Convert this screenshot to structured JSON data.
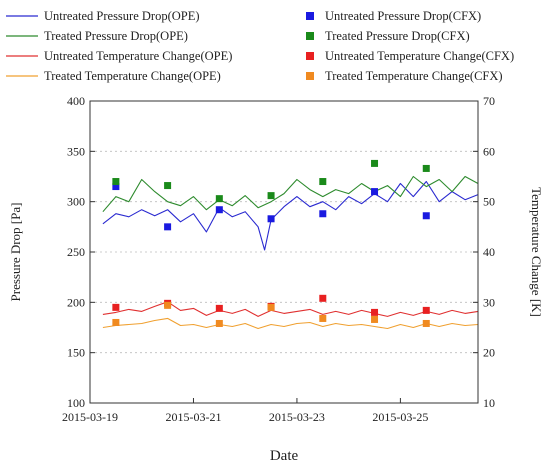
{
  "chart_data": {
    "type": "line",
    "xlabel": "Date",
    "ylabel": "Pressure Drop [Pa]",
    "y2label": "Temperature Change [K]",
    "xlim": [
      "2015-03-19T00:00",
      "2015-03-26T12:00"
    ],
    "xticks": [
      "2015-03-19",
      "2015-03-21",
      "2015-03-23",
      "2015-03-25"
    ],
    "ylim": [
      100,
      400
    ],
    "yticks": [
      100,
      150,
      200,
      250,
      300,
      350,
      400
    ],
    "y2lim": [
      10,
      70
    ],
    "y2ticks": [
      10,
      20,
      30,
      40,
      50,
      60,
      70
    ],
    "grid": "dashed horizontal",
    "legend_placement": "top, two columns",
    "series": [
      {
        "name": "Untreated Pressure Drop(OPE)",
        "kind": "line",
        "axis": "left",
        "color": "#2a2ad0",
        "x": [
          "2015-03-19T06:00",
          "2015-03-19T12:00",
          "2015-03-19T18:00",
          "2015-03-20T00:00",
          "2015-03-20T06:00",
          "2015-03-20T12:00",
          "2015-03-20T18:00",
          "2015-03-21T00:00",
          "2015-03-21T06:00",
          "2015-03-21T12:00",
          "2015-03-21T18:00",
          "2015-03-22T00:00",
          "2015-03-22T06:00",
          "2015-03-22T09:00",
          "2015-03-22T12:00",
          "2015-03-22T18:00",
          "2015-03-23T00:00",
          "2015-03-23T06:00",
          "2015-03-23T12:00",
          "2015-03-23T18:00",
          "2015-03-24T00:00",
          "2015-03-24T06:00",
          "2015-03-24T12:00",
          "2015-03-24T18:00",
          "2015-03-25T00:00",
          "2015-03-25T06:00",
          "2015-03-25T12:00",
          "2015-03-25T18:00",
          "2015-03-26T00:00",
          "2015-03-26T06:00",
          "2015-03-26T12:00"
        ],
        "y": [
          278,
          288,
          285,
          292,
          286,
          292,
          280,
          288,
          270,
          294,
          285,
          290,
          275,
          252,
          282,
          295,
          305,
          295,
          300,
          292,
          305,
          298,
          308,
          300,
          318,
          305,
          320,
          300,
          310,
          302,
          307
        ]
      },
      {
        "name": "Treated Pressure Drop(OPE)",
        "kind": "line",
        "axis": "left",
        "color": "#2e8b2e",
        "x": [
          "2015-03-19T06:00",
          "2015-03-19T12:00",
          "2015-03-19T18:00",
          "2015-03-20T00:00",
          "2015-03-20T06:00",
          "2015-03-20T12:00",
          "2015-03-20T18:00",
          "2015-03-21T00:00",
          "2015-03-21T06:00",
          "2015-03-21T12:00",
          "2015-03-21T18:00",
          "2015-03-22T00:00",
          "2015-03-22T06:00",
          "2015-03-22T12:00",
          "2015-03-22T18:00",
          "2015-03-23T00:00",
          "2015-03-23T06:00",
          "2015-03-23T12:00",
          "2015-03-23T18:00",
          "2015-03-24T00:00",
          "2015-03-24T06:00",
          "2015-03-24T12:00",
          "2015-03-24T18:00",
          "2015-03-25T00:00",
          "2015-03-25T06:00",
          "2015-03-25T12:00",
          "2015-03-25T18:00",
          "2015-03-26T00:00",
          "2015-03-26T06:00",
          "2015-03-26T12:00"
        ],
        "y": [
          290,
          305,
          300,
          322,
          310,
          300,
          296,
          305,
          292,
          302,
          296,
          306,
          294,
          300,
          308,
          322,
          312,
          305,
          312,
          308,
          318,
          310,
          316,
          305,
          325,
          315,
          322,
          310,
          325,
          318
        ]
      },
      {
        "name": "Untreated Temperature Change(OPE)",
        "kind": "line",
        "axis": "right",
        "color": "#e03030",
        "x": [
          "2015-03-19T06:00",
          "2015-03-19T12:00",
          "2015-03-19T18:00",
          "2015-03-20T00:00",
          "2015-03-20T06:00",
          "2015-03-20T12:00",
          "2015-03-20T18:00",
          "2015-03-21T00:00",
          "2015-03-21T06:00",
          "2015-03-21T12:00",
          "2015-03-21T18:00",
          "2015-03-22T00:00",
          "2015-03-22T06:00",
          "2015-03-22T12:00",
          "2015-03-22T18:00",
          "2015-03-23T00:00",
          "2015-03-23T06:00",
          "2015-03-23T12:00",
          "2015-03-23T18:00",
          "2015-03-24T00:00",
          "2015-03-24T06:00",
          "2015-03-24T12:00",
          "2015-03-24T18:00",
          "2015-03-25T00:00",
          "2015-03-25T06:00",
          "2015-03-25T12:00",
          "2015-03-25T18:00",
          "2015-03-26T00:00",
          "2015-03-26T06:00",
          "2015-03-26T12:00"
        ],
        "y": [
          27.6,
          28.0,
          28.6,
          28.2,
          29.2,
          30.1,
          28.4,
          28.8,
          27.4,
          28.4,
          27.8,
          28.6,
          27.2,
          28.4,
          27.8,
          28.2,
          28.6,
          27.6,
          28.2,
          27.6,
          28.4,
          27.8,
          27.2,
          28.0,
          27.4,
          28.2,
          27.6,
          28.4,
          27.8,
          28.2
        ]
      },
      {
        "name": "Treated Temperature Change(OPE)",
        "kind": "line",
        "axis": "right",
        "color": "#f0a030",
        "x": [
          "2015-03-19T06:00",
          "2015-03-19T12:00",
          "2015-03-19T18:00",
          "2015-03-20T00:00",
          "2015-03-20T06:00",
          "2015-03-20T12:00",
          "2015-03-20T18:00",
          "2015-03-21T00:00",
          "2015-03-21T06:00",
          "2015-03-21T12:00",
          "2015-03-21T18:00",
          "2015-03-22T00:00",
          "2015-03-22T06:00",
          "2015-03-22T12:00",
          "2015-03-22T18:00",
          "2015-03-23T00:00",
          "2015-03-23T06:00",
          "2015-03-23T12:00",
          "2015-03-23T18:00",
          "2015-03-24T00:00",
          "2015-03-24T06:00",
          "2015-03-24T12:00",
          "2015-03-24T18:00",
          "2015-03-25T00:00",
          "2015-03-25T06:00",
          "2015-03-25T12:00",
          "2015-03-25T18:00",
          "2015-03-26T00:00",
          "2015-03-26T06:00",
          "2015-03-26T12:00"
        ],
        "y": [
          25.0,
          25.4,
          25.6,
          25.8,
          26.4,
          26.8,
          25.4,
          25.6,
          25.0,
          25.6,
          25.2,
          25.8,
          24.8,
          25.6,
          25.2,
          25.8,
          26.0,
          25.2,
          25.8,
          25.4,
          25.6,
          25.2,
          24.8,
          25.6,
          25.0,
          25.8,
          25.2,
          25.8,
          25.4,
          25.6
        ]
      },
      {
        "name": "Untreated Pressure Drop(CFX)",
        "kind": "marker",
        "axis": "left",
        "color": "#1a1ae0",
        "x": [
          "2015-03-19T12:00",
          "2015-03-20T12:00",
          "2015-03-21T12:00",
          "2015-03-22T12:00",
          "2015-03-23T12:00",
          "2015-03-24T12:00",
          "2015-03-25T12:00"
        ],
        "y": [
          315,
          275,
          292,
          283,
          288,
          310,
          286
        ]
      },
      {
        "name": "Treated Pressure Drop(CFX)",
        "kind": "marker",
        "axis": "left",
        "color": "#1a8a1a",
        "x": [
          "2015-03-19T12:00",
          "2015-03-20T12:00",
          "2015-03-21T12:00",
          "2015-03-22T12:00",
          "2015-03-23T12:00",
          "2015-03-24T12:00",
          "2015-03-25T12:00"
        ],
        "y": [
          320,
          316,
          303,
          306,
          320,
          338,
          333
        ]
      },
      {
        "name": "Untreated Temperature Change(CFX)",
        "kind": "marker",
        "axis": "right",
        "color": "#e82020",
        "x": [
          "2015-03-19T12:00",
          "2015-03-20T12:00",
          "2015-03-21T12:00",
          "2015-03-22T12:00",
          "2015-03-23T12:00",
          "2015-03-24T12:00",
          "2015-03-25T12:00"
        ],
        "y": [
          29.0,
          29.8,
          28.8,
          29.2,
          30.8,
          28.0,
          28.4
        ]
      },
      {
        "name": "Treated Temperature Change(CFX)",
        "kind": "marker",
        "axis": "right",
        "color": "#f08a20",
        "x": [
          "2015-03-19T12:00",
          "2015-03-20T12:00",
          "2015-03-21T12:00",
          "2015-03-22T12:00",
          "2015-03-23T12:00",
          "2015-03-24T12:00",
          "2015-03-25T12:00"
        ],
        "y": [
          26.0,
          29.4,
          25.8,
          29.0,
          26.8,
          26.6,
          25.8
        ]
      }
    ]
  }
}
